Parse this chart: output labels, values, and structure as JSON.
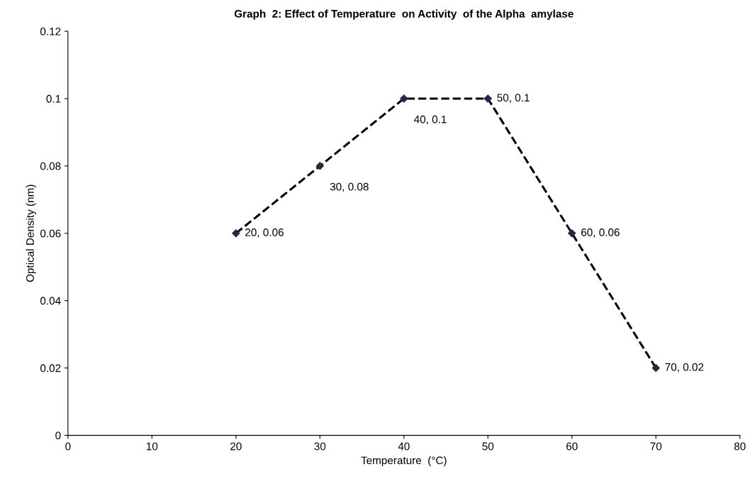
{
  "chart_data": {
    "type": "line",
    "title": "Graph  2: Effect of Temperature  on Activity  of the Alpha  amylase",
    "xlabel": "Temperature  (°C)",
    "ylabel": "Optical Density (nm)",
    "x": [
      20,
      30,
      40,
      50,
      60,
      70
    ],
    "series": [
      {
        "color": "#000000",
        "values": [
          0.06,
          0.08,
          0.1,
          0.1,
          0.06,
          0.02
        ],
        "value_labels": [
          "20, 0.06",
          "30, 0.08",
          "40, 0.1",
          "50, 0.1",
          "60, 0.06",
          "70, 0.02"
        ]
      }
    ],
    "xlim": [
      0,
      80
    ],
    "xticks": [
      0,
      10,
      20,
      30,
      40,
      50,
      60,
      70,
      80
    ],
    "ylim": [
      0,
      0.12
    ],
    "yticks": [
      0,
      0.02,
      0.04,
      0.06,
      0.08,
      0.1,
      0.12
    ],
    "grid": false,
    "marker": "diamond",
    "line_style": "dashed"
  }
}
